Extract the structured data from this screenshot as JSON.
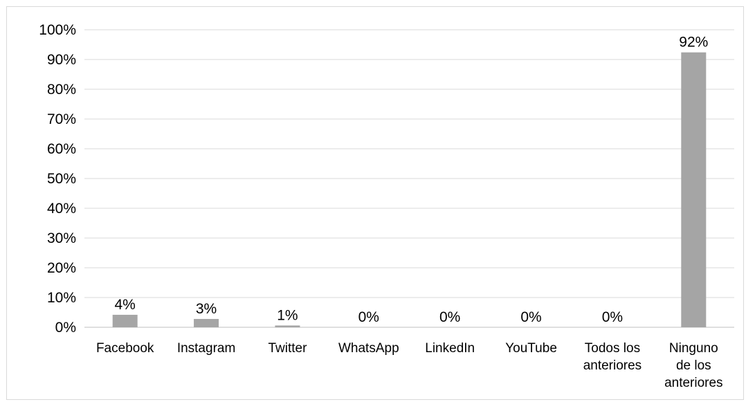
{
  "chart_data": {
    "type": "bar",
    "categories": [
      [
        "Facebook"
      ],
      [
        "Instagram"
      ],
      [
        "Twitter"
      ],
      [
        "WhatsApp"
      ],
      [
        "LinkedIn"
      ],
      [
        "YouTube"
      ],
      [
        "Todos los",
        "anteriores"
      ],
      [
        "Ninguno",
        "de los",
        "anteriores"
      ]
    ],
    "values": [
      4.2,
      2.8,
      0.6,
      0,
      0,
      0,
      0,
      92.4
    ],
    "data_labels": [
      "4%",
      "3%",
      "1%",
      "0%",
      "0%",
      "0%",
      "0%",
      "92%"
    ],
    "y_ticks": [
      "0%",
      "10%",
      "20%",
      "30%",
      "40%",
      "50%",
      "60%",
      "70%",
      "80%",
      "90%",
      "100%"
    ],
    "ylim": [
      0,
      100
    ],
    "grid": true,
    "legend": "none",
    "colors": {
      "bar": "#a5a5a5",
      "grid": "#d9d9d9",
      "axis": "#bfbfbf",
      "border": "#d9d9d9"
    }
  }
}
